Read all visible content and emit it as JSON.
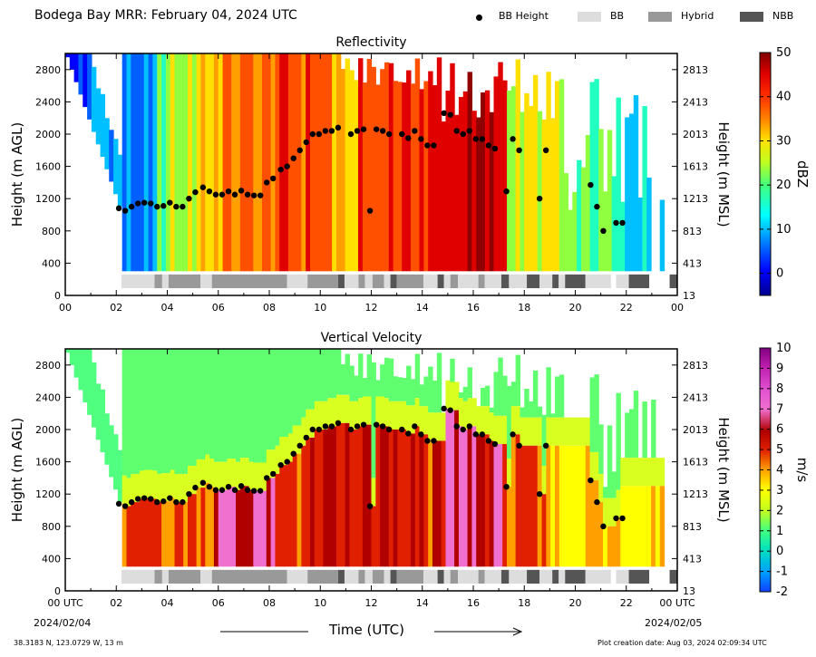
{
  "header": {
    "title": "Bodega Bay MRR:  February 04, 2024 UTC",
    "legend": [
      {
        "label": "BB Height",
        "marker": "dot",
        "color": "#000000"
      },
      {
        "label": "BB",
        "marker": "bar",
        "color": "#dddddd"
      },
      {
        "label": "Hybrid",
        "marker": "bar",
        "color": "#999999"
      },
      {
        "label": "NBB",
        "marker": "bar",
        "color": "#555555"
      }
    ]
  },
  "footer": {
    "location": "38.3183 N, 123.0729 W, 13 m",
    "creation": "Plot creation date: Aug 03, 2024 02:09:34 UTC",
    "start_date": "2024/02/04",
    "end_date": "2024/02/05",
    "xlabel": "Time (UTC)"
  },
  "chart_data": [
    {
      "type": "heatmap",
      "title": "Reflectivity",
      "ylabel": "Height (m AGL)",
      "ylabel_right": "Height (m MSL)",
      "xlabel": "",
      "x_ticks": [
        "00",
        "02",
        "04",
        "06",
        "08",
        "10",
        "12",
        "14",
        "16",
        "18",
        "20",
        "22",
        "00"
      ],
      "y_ticks": [
        0,
        400,
        800,
        1200,
        1600,
        2000,
        2400,
        2800
      ],
      "y_ticks_right": [
        13,
        413,
        813,
        1213,
        1613,
        2013,
        2413,
        2813
      ],
      "xlim": [
        0,
        24
      ],
      "ylim": [
        0,
        3000
      ],
      "colorbar": {
        "label": "dBZ",
        "min": -5,
        "max": 50,
        "ticks": [
          0,
          10,
          20,
          30,
          40,
          50
        ]
      },
      "bb_height": [
        [
          2.1,
          1080
        ],
        [
          2.35,
          1050
        ],
        [
          2.6,
          1100
        ],
        [
          2.85,
          1140
        ],
        [
          3.1,
          1150
        ],
        [
          3.35,
          1140
        ],
        [
          3.6,
          1100
        ],
        [
          3.85,
          1110
        ],
        [
          4.1,
          1150
        ],
        [
          4.35,
          1100
        ],
        [
          4.6,
          1100
        ],
        [
          4.85,
          1200
        ],
        [
          5.1,
          1280
        ],
        [
          5.4,
          1340
        ],
        [
          5.65,
          1290
        ],
        [
          5.9,
          1250
        ],
        [
          6.15,
          1250
        ],
        [
          6.4,
          1290
        ],
        [
          6.65,
          1250
        ],
        [
          6.9,
          1300
        ],
        [
          7.15,
          1250
        ],
        [
          7.4,
          1240
        ],
        [
          7.65,
          1240
        ],
        [
          7.9,
          1400
        ],
        [
          8.15,
          1450
        ],
        [
          8.45,
          1560
        ],
        [
          8.7,
          1600
        ],
        [
          8.95,
          1700
        ],
        [
          9.2,
          1800
        ],
        [
          9.45,
          1900
        ],
        [
          9.7,
          2000
        ],
        [
          9.95,
          2000
        ],
        [
          10.2,
          2040
        ],
        [
          10.45,
          2040
        ],
        [
          10.7,
          2080
        ],
        [
          11.2,
          2000
        ],
        [
          11.45,
          2040
        ],
        [
          11.7,
          2060
        ],
        [
          11.95,
          1050
        ],
        [
          12.2,
          2060
        ],
        [
          12.45,
          2040
        ],
        [
          12.7,
          2000
        ],
        [
          13.2,
          2000
        ],
        [
          13.45,
          1950
        ],
        [
          13.7,
          2040
        ],
        [
          13.95,
          1940
        ],
        [
          14.2,
          1860
        ],
        [
          14.45,
          1860
        ],
        [
          14.85,
          2260
        ],
        [
          15.1,
          2240
        ],
        [
          15.35,
          2040
        ],
        [
          15.6,
          2000
        ],
        [
          15.85,
          2040
        ],
        [
          16.1,
          1940
        ],
        [
          16.35,
          1940
        ],
        [
          16.6,
          1860
        ],
        [
          16.85,
          1820
        ],
        [
          17.3,
          1290
        ],
        [
          17.55,
          1940
        ],
        [
          17.8,
          1800
        ],
        [
          18.6,
          1200
        ],
        [
          18.85,
          1800
        ],
        [
          20.6,
          1370
        ],
        [
          20.85,
          1100
        ],
        [
          21.1,
          800
        ],
        [
          21.6,
          900
        ],
        [
          21.85,
          900
        ]
      ],
      "bb_type": [
        {
          "start": 2.2,
          "end": 3.5,
          "type": "BB"
        },
        {
          "start": 3.5,
          "end": 3.8,
          "type": "Hybrid"
        },
        {
          "start": 3.8,
          "end": 4.05,
          "type": "BB"
        },
        {
          "start": 4.05,
          "end": 5.3,
          "type": "Hybrid"
        },
        {
          "start": 5.3,
          "end": 5.75,
          "type": "BB"
        },
        {
          "start": 5.75,
          "end": 8.7,
          "type": "Hybrid"
        },
        {
          "start": 8.7,
          "end": 9.5,
          "type": "BB"
        },
        {
          "start": 9.5,
          "end": 10.7,
          "type": "Hybrid"
        },
        {
          "start": 10.7,
          "end": 10.95,
          "type": "NBB"
        },
        {
          "start": 10.95,
          "end": 11.5,
          "type": "BB"
        },
        {
          "start": 11.5,
          "end": 11.75,
          "type": "Hybrid"
        },
        {
          "start": 11.75,
          "end": 12.05,
          "type": "BB"
        },
        {
          "start": 12.05,
          "end": 12.5,
          "type": "Hybrid"
        },
        {
          "start": 12.5,
          "end": 12.75,
          "type": "BB"
        },
        {
          "start": 12.75,
          "end": 13.0,
          "type": "NBB"
        },
        {
          "start": 13.0,
          "end": 14.05,
          "type": "Hybrid"
        },
        {
          "start": 14.05,
          "end": 14.6,
          "type": "BB"
        },
        {
          "start": 14.6,
          "end": 14.85,
          "type": "NBB"
        },
        {
          "start": 14.85,
          "end": 15.1,
          "type": "BB"
        },
        {
          "start": 15.1,
          "end": 15.4,
          "type": "Hybrid"
        },
        {
          "start": 15.4,
          "end": 16.2,
          "type": "BB"
        },
        {
          "start": 16.2,
          "end": 16.45,
          "type": "Hybrid"
        },
        {
          "start": 16.45,
          "end": 17.1,
          "type": "BB"
        },
        {
          "start": 17.1,
          "end": 17.4,
          "type": "NBB"
        },
        {
          "start": 17.4,
          "end": 18.1,
          "type": "BB"
        },
        {
          "start": 18.1,
          "end": 18.6,
          "type": "NBB"
        },
        {
          "start": 18.6,
          "end": 19.1,
          "type": "BB"
        },
        {
          "start": 19.1,
          "end": 19.35,
          "type": "NBB"
        },
        {
          "start": 19.35,
          "end": 19.6,
          "type": "BB"
        },
        {
          "start": 19.6,
          "end": 20.4,
          "type": "NBB"
        },
        {
          "start": 20.4,
          "end": 21.4,
          "type": "BB"
        },
        {
          "start": 21.6,
          "end": 22.1,
          "type": "BB"
        },
        {
          "start": 22.1,
          "end": 22.9,
          "type": "NBB"
        },
        {
          "start": 23.7,
          "end": 24.0,
          "type": "NBB"
        }
      ]
    },
    {
      "type": "heatmap",
      "title": "Vertical Velocity",
      "ylabel": "Height (m AGL)",
      "ylabel_right": "Height (m MSL)",
      "xlabel": "Time (UTC)",
      "x_ticks": [
        "00 UTC",
        "02",
        "04",
        "06",
        "08",
        "10",
        "12",
        "14",
        "16",
        "18",
        "20",
        "22",
        "00 UTC"
      ],
      "y_ticks": [
        0,
        400,
        800,
        1200,
        1600,
        2000,
        2400,
        2800
      ],
      "y_ticks_right": [
        13,
        413,
        813,
        1213,
        1613,
        2013,
        2413,
        2813
      ],
      "xlim": [
        0,
        24
      ],
      "ylim": [
        0,
        3000
      ],
      "colorbar": {
        "label": "m/s",
        "min": -2,
        "max": 10,
        "ticks": [
          -2,
          -1,
          0,
          1,
          2,
          3,
          4,
          5,
          6,
          7,
          8,
          9,
          10
        ]
      }
    }
  ]
}
